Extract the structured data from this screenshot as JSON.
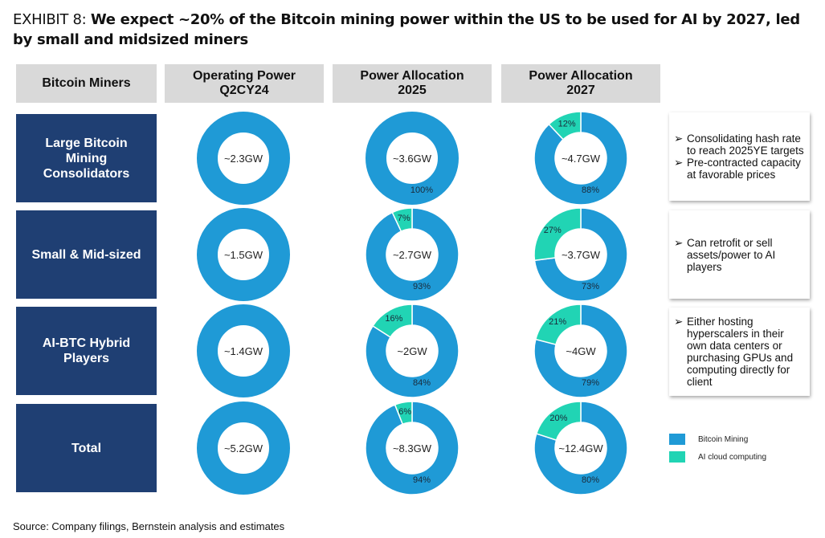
{
  "title": {
    "prefix": "EXHIBIT 8: ",
    "main": "We expect ~20% of the Bitcoin mining power within the US to be used for AI by 2027, led by small and midsized miners"
  },
  "headers": [
    "Bitcoin Miners",
    "Operating Power Q2CY24",
    "Power Allocation 2025",
    "Power Allocation 2027"
  ],
  "colors": {
    "bitcoin_mining": "#1f9ad6",
    "ai_cloud": "#21d4b4",
    "row_box": "#1f3f73",
    "header_box": "#d9d9d9"
  },
  "chart_data": {
    "type": "pie",
    "variant": "donut",
    "rows": [
      {
        "label": "Large Bitcoin Mining Consolidators",
        "charts": [
          {
            "center": "~2.3GW",
            "ai": 0,
            "btc": 100,
            "ai_label": "",
            "btc_label": ""
          },
          {
            "center": "~3.6GW",
            "ai": 0,
            "btc": 100,
            "ai_label": "",
            "btc_label": "100%"
          },
          {
            "center": "~4.7GW",
            "ai": 12,
            "btc": 88,
            "ai_label": "12%",
            "btc_label": "88%"
          }
        ]
      },
      {
        "label": "Small & Mid-sized",
        "charts": [
          {
            "center": "~1.5GW",
            "ai": 0,
            "btc": 100,
            "ai_label": "",
            "btc_label": ""
          },
          {
            "center": "~2.7GW",
            "ai": 7,
            "btc": 93,
            "ai_label": "7%",
            "btc_label": "93%"
          },
          {
            "center": "~3.7GW",
            "ai": 27,
            "btc": 73,
            "ai_label": "27%",
            "btc_label": "73%"
          }
        ]
      },
      {
        "label": "AI-BTC Hybrid Players",
        "charts": [
          {
            "center": "~1.4GW",
            "ai": 0,
            "btc": 100,
            "ai_label": "",
            "btc_label": ""
          },
          {
            "center": "~2GW",
            "ai": 16,
            "btc": 84,
            "ai_label": "16%",
            "btc_label": "84%"
          },
          {
            "center": "~4GW",
            "ai": 21,
            "btc": 79,
            "ai_label": "21%",
            "btc_label": "79%"
          }
        ]
      },
      {
        "label": "Total",
        "charts": [
          {
            "center": "~5.2GW",
            "ai": 0,
            "btc": 100,
            "ai_label": "",
            "btc_label": ""
          },
          {
            "center": "~8.3GW",
            "ai": 6,
            "btc": 94,
            "ai_label": "6%",
            "btc_label": "94%"
          },
          {
            "center": "~12.4GW",
            "ai": 20,
            "btc": 80,
            "ai_label": "20%",
            "btc_label": "80%"
          }
        ]
      }
    ],
    "legend": [
      "Bitcoin Mining",
      "AI cloud computing"
    ],
    "legend_placement": "bottom-right"
  },
  "notes": [
    [
      "Consolidating hash rate to reach 2025YE targets",
      "Pre-contracted capacity at favorable prices"
    ],
    [
      "Can retrofit or sell assets/power to AI players"
    ],
    [
      "Either hosting hyperscalers in their own data centers or purchasing GPUs and computing directly for client"
    ]
  ],
  "bullet": "➢",
  "source": "Source: Company filings, Bernstein analysis and estimates"
}
